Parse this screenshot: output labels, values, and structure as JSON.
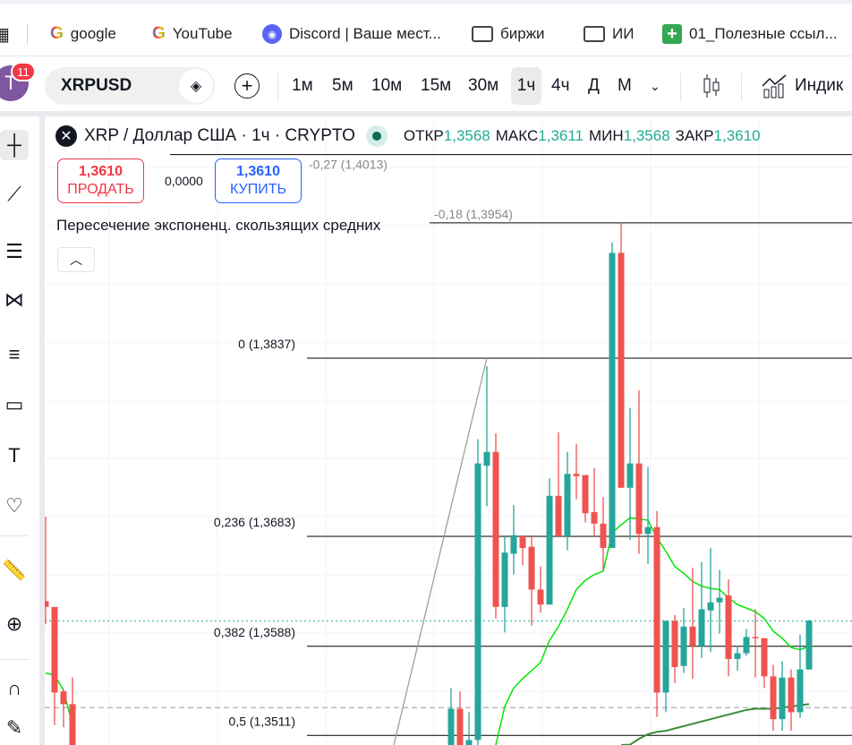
{
  "bookmarks": [
    {
      "label": "google",
      "icon": "google-icon"
    },
    {
      "label": "YouTube",
      "icon": "google-icon"
    },
    {
      "label": "Discord | Ваше мест...",
      "icon": "discord-icon"
    },
    {
      "label": "биржи",
      "icon": "folder-icon"
    },
    {
      "label": "ИИ",
      "icon": "folder-icon"
    },
    {
      "label": "01_Полезные ссыл...",
      "icon": "sheets-icon"
    }
  ],
  "toolbar": {
    "avatar_letter": "T",
    "notifications": "11",
    "symbol": "XRPUSD",
    "timeframes": [
      "1м",
      "5м",
      "10м",
      "15м",
      "30м",
      "1ч",
      "4ч",
      "Д",
      "М"
    ],
    "active_timeframe": "1ч",
    "indicators_label": "Индик"
  },
  "legend": {
    "title": "XRP / Доллар США · 1ч · CRYPTO",
    "ohlc": [
      {
        "k": "ОТКР",
        "v": "1,3568"
      },
      {
        "k": "МАКС",
        "v": "1,3611"
      },
      {
        "k": "МИН",
        "v": "1,3568"
      },
      {
        "k": "ЗАКР",
        "v": "1,3610"
      }
    ],
    "sell_price": "1,3610",
    "sell_label": "ПРОДАТЬ",
    "spread": "0,0000",
    "buy_price": "1,3610",
    "buy_label": "КУПИТЬ",
    "indicator": "Пересечение экспоненц. скользящих средних"
  },
  "colors": {
    "up": "#26a69a",
    "down": "#ef5350",
    "ema_fast": "#00e600",
    "ema_slow": "#388e3c",
    "fib": "#000000",
    "current_price_line": "#22ab94"
  },
  "chart_data": {
    "type": "candlestick",
    "current_price": 1.361,
    "dashed_level": 1.3535,
    "fib_levels": [
      {
        "label": "-0,27 (1,4013)",
        "price": 1.4013
      },
      {
        "label": "-0,18 (1,3954)",
        "price": 1.3954
      },
      {
        "label": "0 (1,3837)",
        "price": 1.3837
      },
      {
        "label": "0,236 (1,3683)",
        "price": 1.3683
      },
      {
        "label": "0,382 (1,3588)",
        "price": 1.3588
      },
      {
        "label": "0,5 (1,3511)",
        "price": 1.3511
      }
    ],
    "candles_left": [
      [
        1.3627,
        1.37,
        1.3607,
        1.3622
      ],
      [
        1.3622,
        1.3622,
        1.352,
        1.3548
      ],
      [
        1.3549,
        1.3551,
        1.3518,
        1.3538
      ],
      [
        1.3538,
        1.3561,
        1.346,
        1.347
      ]
    ],
    "ema_fast_left": [
      1.3565,
      1.3563,
      1.355,
      1.352
    ],
    "candles_right": [
      [
        1.348,
        1.3552,
        1.347,
        1.3534
      ],
      [
        1.3534,
        1.3549,
        1.347,
        1.348
      ],
      [
        1.3475,
        1.3531,
        1.3465,
        1.3507
      ],
      [
        1.3507,
        1.3767,
        1.347,
        1.3746
      ],
      [
        1.3744,
        1.383,
        1.3709,
        1.3756
      ],
      [
        1.3756,
        1.3772,
        1.3612,
        1.3622
      ],
      [
        1.3622,
        1.3683,
        1.36,
        1.3669
      ],
      [
        1.3668,
        1.371,
        1.365,
        1.3684
      ],
      [
        1.3683,
        1.3684,
        1.3658,
        1.3673
      ],
      [
        1.3674,
        1.3684,
        1.3606,
        1.3637
      ],
      [
        1.3637,
        1.3657,
        1.3617,
        1.3624
      ],
      [
        1.3624,
        1.3733,
        1.3624,
        1.3718
      ],
      [
        1.3718,
        1.3773,
        1.3683,
        1.3683
      ],
      [
        1.3683,
        1.3756,
        1.3671,
        1.3737
      ],
      [
        1.3737,
        1.3763,
        1.3715,
        1.3735
      ],
      [
        1.3736,
        1.3736,
        1.3695,
        1.3703
      ],
      [
        1.3704,
        1.3742,
        1.3683,
        1.3694
      ],
      [
        1.3694,
        1.3717,
        1.3654,
        1.3673
      ],
      [
        1.3673,
        1.3937,
        1.3673,
        1.3928
      ],
      [
        1.3928,
        1.3954,
        1.3725,
        1.3725
      ],
      [
        1.3725,
        1.3794,
        1.368,
        1.3746
      ],
      [
        1.3746,
        1.3809,
        1.3668,
        1.3685
      ],
      [
        1.3685,
        1.3743,
        1.3659,
        1.3691
      ],
      [
        1.3691,
        1.3705,
        1.3527,
        1.3548
      ],
      [
        1.3548,
        1.361,
        1.3531,
        1.361
      ],
      [
        1.361,
        1.3615,
        1.3556,
        1.357
      ],
      [
        1.3571,
        1.3621,
        1.3565,
        1.3605
      ],
      [
        1.3605,
        1.3656,
        1.356,
        1.3588
      ],
      [
        1.3588,
        1.3661,
        1.3578,
        1.362
      ],
      [
        1.3619,
        1.3673,
        1.3583,
        1.3626
      ],
      [
        1.3626,
        1.3654,
        1.3599,
        1.363
      ],
      [
        1.3632,
        1.3646,
        1.3562,
        1.3577
      ],
      [
        1.3577,
        1.3588,
        1.3567,
        1.3582
      ],
      [
        1.3582,
        1.3603,
        1.358,
        1.3596
      ],
      [
        1.3596,
        1.362,
        1.3561,
        1.3595
      ],
      [
        1.3595,
        1.3595,
        1.3552,
        1.3562
      ],
      [
        1.3562,
        1.3572,
        1.3515,
        1.3525
      ],
      [
        1.3525,
        1.3575,
        1.3515,
        1.3561
      ],
      [
        1.3561,
        1.3568,
        1.3515,
        1.3531
      ],
      [
        1.3531,
        1.3598,
        1.3526,
        1.3568
      ],
      [
        1.3568,
        1.3611,
        1.3568,
        1.361
      ]
    ],
    "ema_fast_right": [
      null,
      null,
      null,
      null,
      null,
      1.35,
      1.3536,
      1.3552,
      1.356,
      1.3567,
      1.3574,
      1.3593,
      1.3605,
      1.362,
      1.3637,
      1.3645,
      1.365,
      1.3653,
      1.3686,
      1.3693,
      1.3699,
      1.3698,
      1.3697,
      1.3682,
      1.367,
      1.3657,
      1.3651,
      1.3644,
      1.364,
      1.3638,
      1.3637,
      1.363,
      1.3624,
      1.3621,
      1.3618,
      1.3612,
      1.3601,
      1.3595,
      1.3587,
      1.3585,
      1.3588
    ],
    "ema_slow_right": [
      null,
      null,
      null,
      null,
      null,
      null,
      null,
      null,
      null,
      null,
      null,
      null,
      null,
      null,
      null,
      null,
      null,
      null,
      null,
      1.3499,
      1.3503,
      1.3508,
      1.3512,
      1.3514,
      1.3515,
      1.3517,
      1.3519,
      1.3521,
      1.3523,
      1.3525,
      1.3527,
      1.3529,
      1.3531,
      1.3533,
      1.3534,
      1.3534,
      1.3534,
      1.3535,
      1.3536,
      1.3537,
      1.3538
    ]
  }
}
